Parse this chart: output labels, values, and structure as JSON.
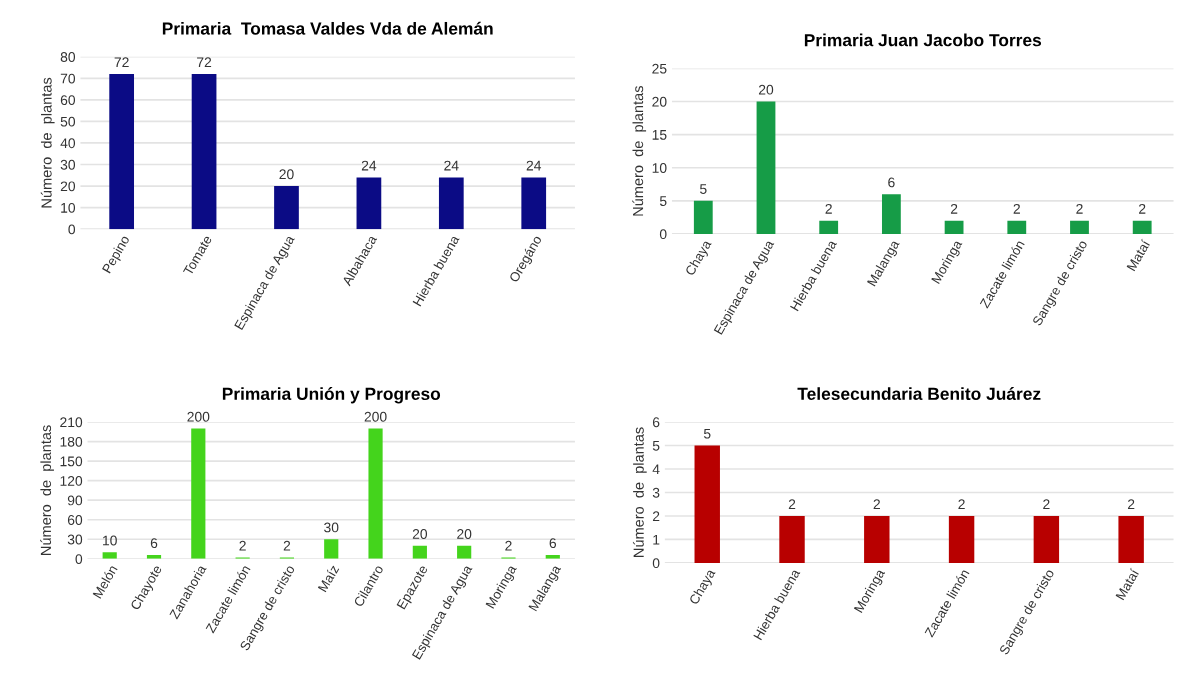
{
  "chart_data": [
    {
      "type": "bar",
      "title": "Primaria  Tomasa Valdes Vda de Alemán",
      "ylabel": "Número  de  plantas",
      "categories": [
        "Pepino",
        "Tomate",
        "Espinaca de Agua",
        "Albahaca",
        "Hierba buena",
        "Oregáno"
      ],
      "values": [
        72,
        72,
        20,
        24,
        24,
        24
      ],
      "color": "#0b0b85",
      "ylim": [
        0,
        80
      ],
      "yticks": [
        0,
        10,
        20,
        30,
        40,
        50,
        60,
        70,
        80
      ],
      "grid": "y",
      "data_labels": true
    },
    {
      "type": "bar",
      "title": "Primaria Juan Jacobo Torres",
      "ylabel": "Número  de  plantas",
      "categories": [
        "Chaya",
        "Espinaca de Agua",
        "Hierba buena",
        "Malanga",
        "Moringa",
        "Zacate limón",
        "Sangre de cristo",
        "Mataí"
      ],
      "values": [
        5,
        20,
        2,
        6,
        2,
        2,
        2,
        2
      ],
      "color": "#169c47",
      "ylim": [
        0,
        25
      ],
      "yticks": [
        0,
        5,
        10,
        15,
        20,
        25
      ],
      "grid": "y",
      "data_labels": true
    },
    {
      "type": "bar",
      "title": "Primaria Unión y Progreso",
      "ylabel": "Número  de  plantas",
      "categories": [
        "Melón",
        "Chayote",
        "Zanahoria",
        "Zacate limón",
        "Sangre de cristo",
        "Maíz",
        "Cilantro",
        "Epazote",
        "Espinaca de Agua",
        "Moringa",
        "Malanga"
      ],
      "values": [
        10,
        6,
        200,
        2,
        2,
        30,
        200,
        20,
        20,
        2,
        6
      ],
      "color": "#44d41c",
      "ylim": [
        0,
        210
      ],
      "yticks": [
        0,
        30,
        60,
        90,
        120,
        150,
        180,
        210
      ],
      "grid": "y",
      "data_labels": true
    },
    {
      "type": "bar",
      "title": "Telesecundaria Benito Juárez",
      "ylabel": "Número  de  plantas",
      "categories": [
        "Chaya",
        "Hierba buena",
        "Moringa",
        "Zacate limón",
        "Sangre de cristo",
        "Mataí"
      ],
      "values": [
        5,
        2,
        2,
        2,
        2,
        2
      ],
      "color": "#b80000",
      "ylim": [
        0,
        6
      ],
      "yticks": [
        0,
        1,
        2,
        3,
        4,
        5,
        6
      ],
      "grid": "y",
      "data_labels": true
    }
  ]
}
